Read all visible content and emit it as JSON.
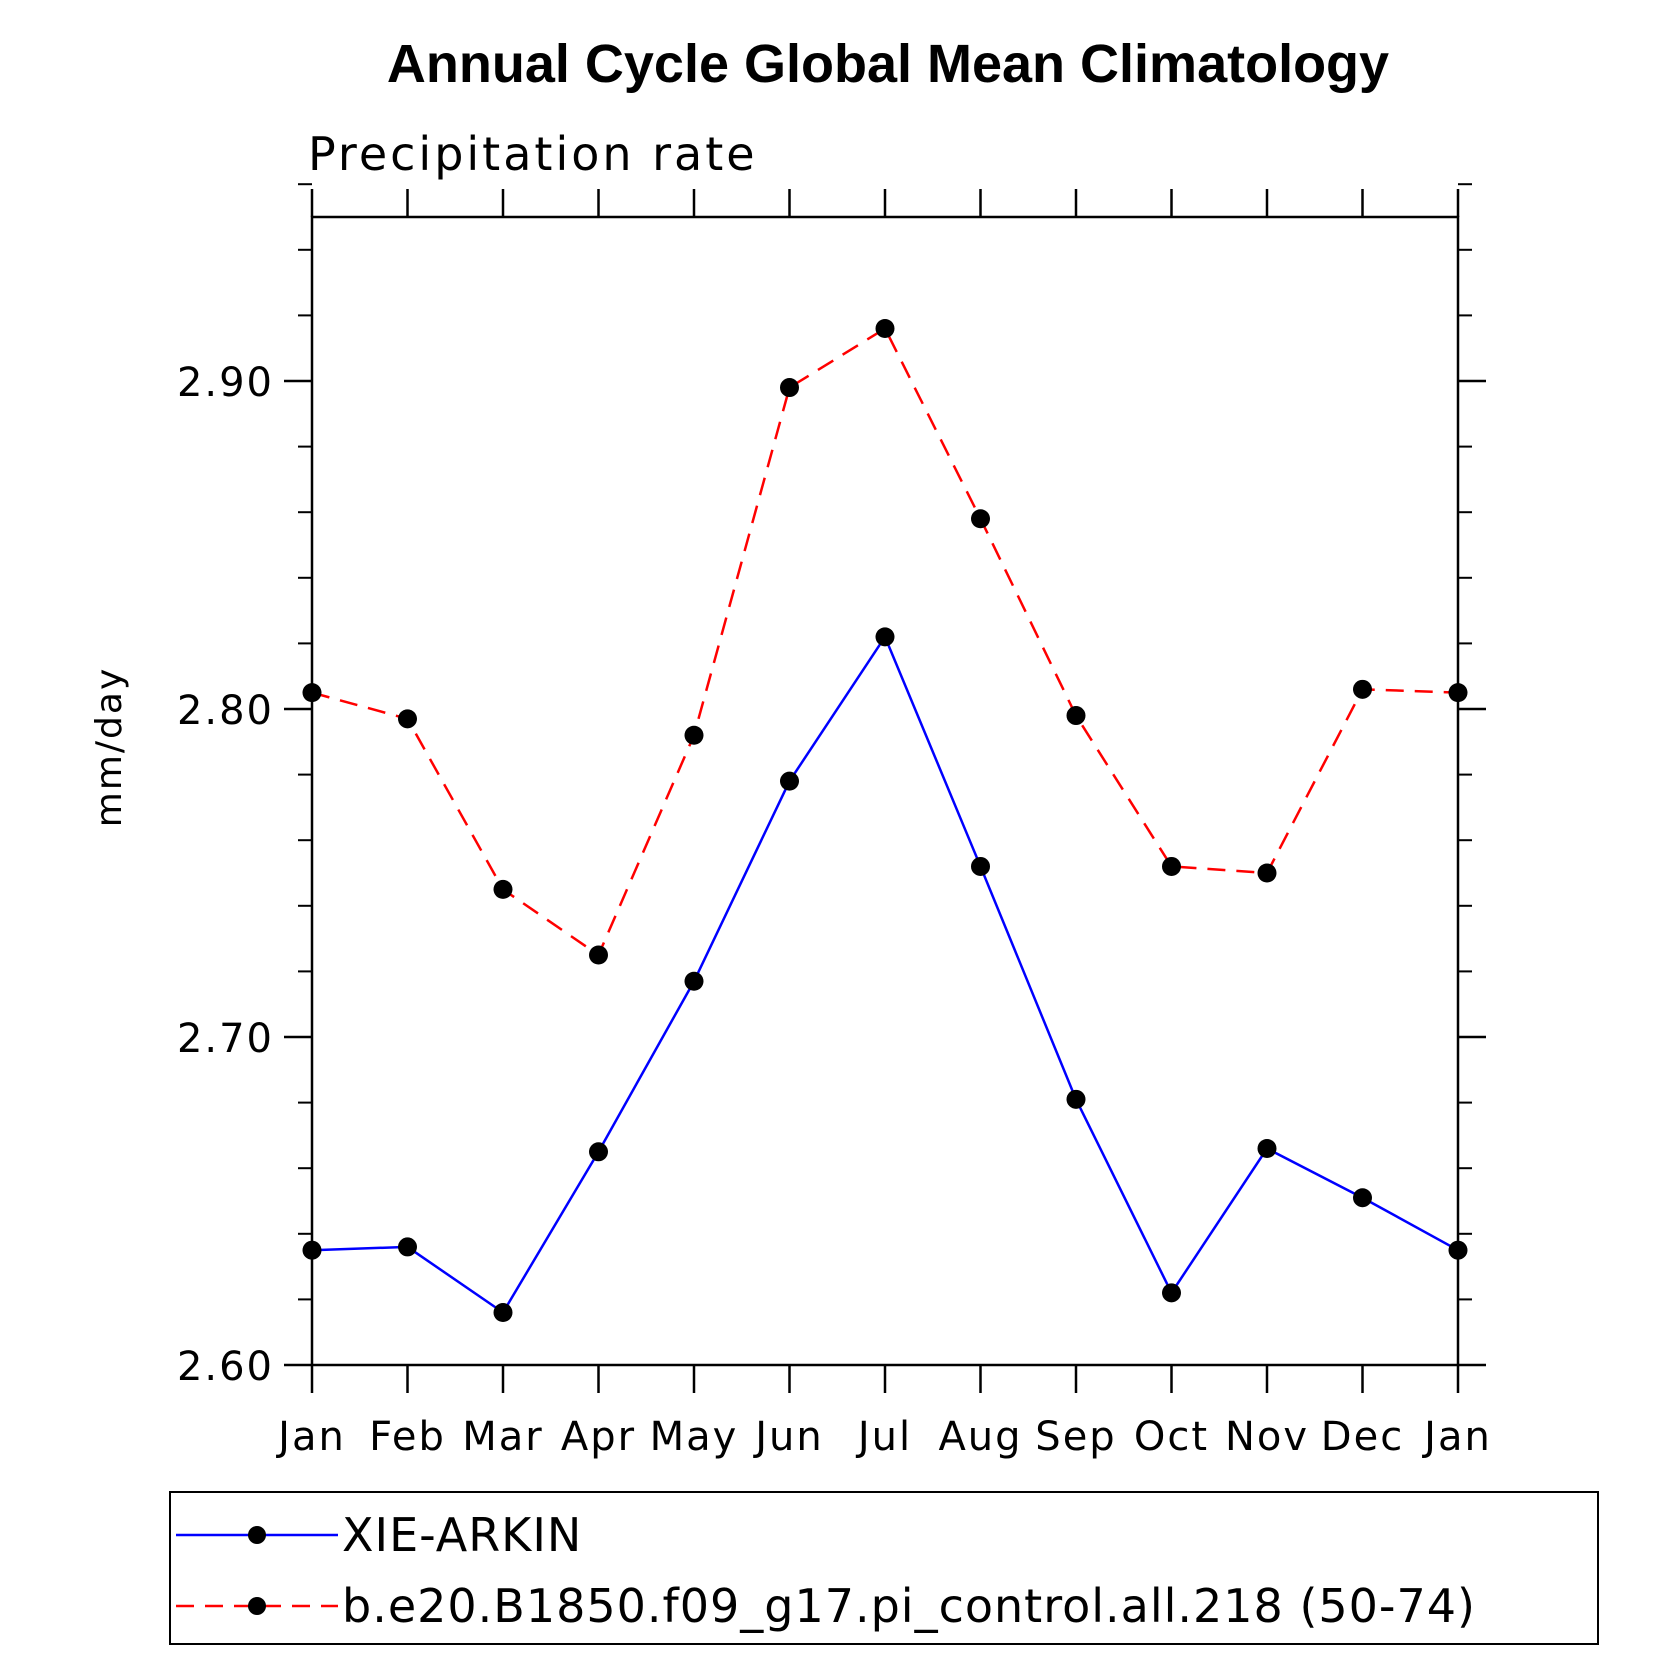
{
  "chart_data": {
    "type": "line",
    "title": "Annual Cycle Global Mean Climatology",
    "subtitle": "Precipitation rate",
    "xlabel": "",
    "ylabel": "mm/day",
    "categories": [
      "Jan",
      "Feb",
      "Mar",
      "Apr",
      "May",
      "Jun",
      "Jul",
      "Aug",
      "Sep",
      "Oct",
      "Nov",
      "Dec",
      "Jan"
    ],
    "ylim": [
      2.6,
      2.95
    ],
    "y_major_ticks": [
      2.6,
      2.7,
      2.8,
      2.9
    ],
    "y_tick_labels": [
      "2.60",
      "2.70",
      "2.80",
      "2.90"
    ],
    "y_minor_step": 0.02,
    "grid": false,
    "legend_placement": "bottom",
    "series": [
      {
        "name": "XIE-ARKIN",
        "color": "#0000ff",
        "line_style": "solid",
        "marker": "filled-circle",
        "values": [
          2.635,
          2.636,
          2.616,
          2.665,
          2.717,
          2.778,
          2.822,
          2.752,
          2.681,
          2.622,
          2.666,
          2.651,
          2.635
        ]
      },
      {
        "name": "b.e20.B1850.f09_g17.pi_control.all.218 (50-74)",
        "color": "#ff0000",
        "line_style": "dashed",
        "marker": "filled-circle",
        "values": [
          2.805,
          2.797,
          2.745,
          2.725,
          2.792,
          2.898,
          2.916,
          2.858,
          2.798,
          2.752,
          2.75,
          2.806,
          2.805
        ]
      }
    ]
  }
}
